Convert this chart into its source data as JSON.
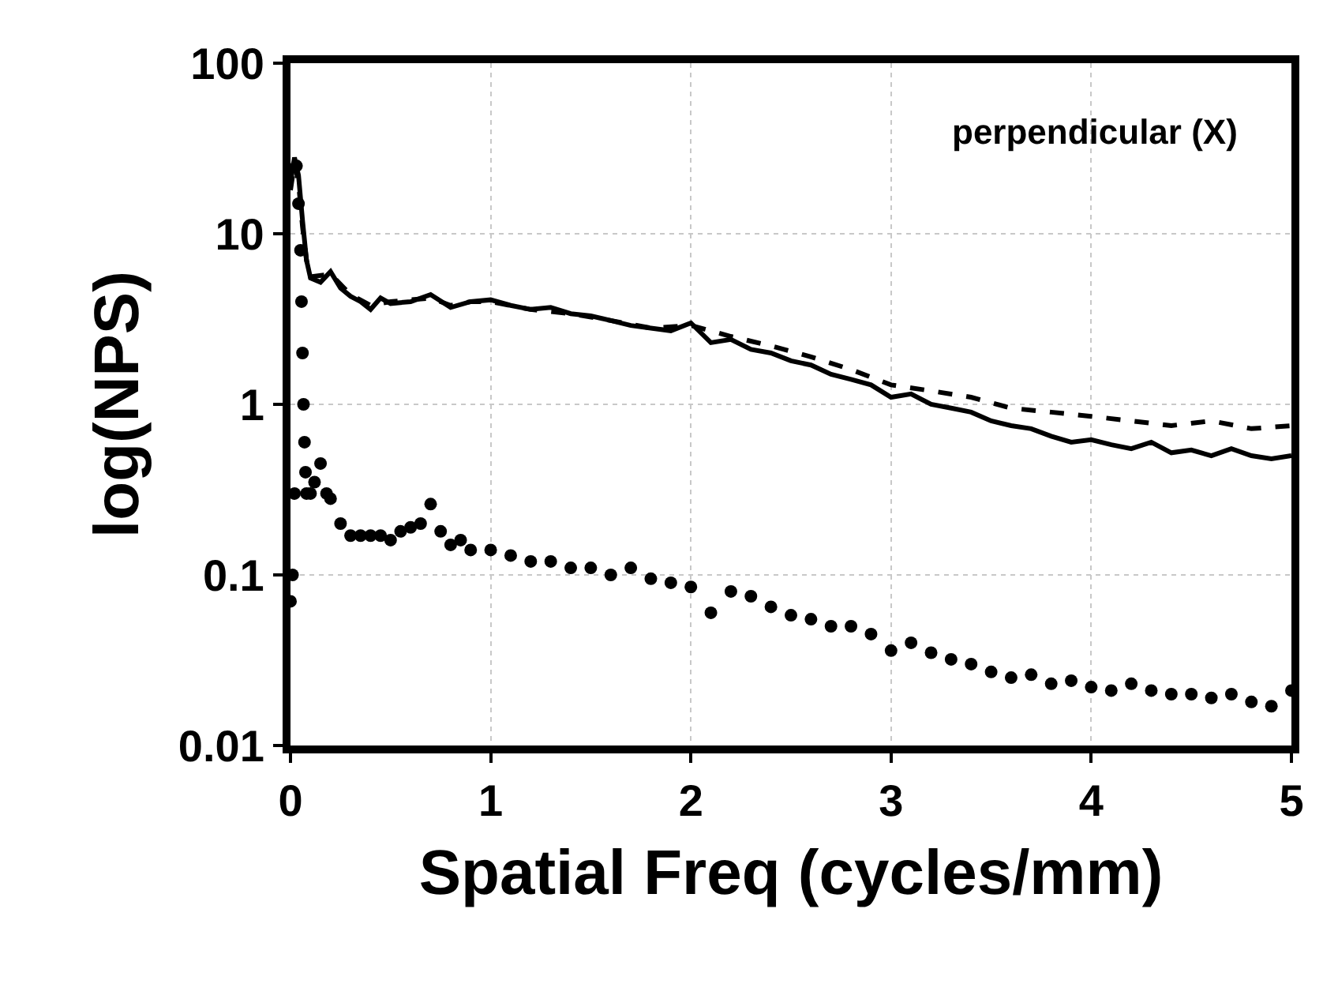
{
  "chart_data": {
    "type": "line",
    "xlabel": "Spatial Freq (cycles/mm)",
    "ylabel": "log(NPS)",
    "annotations": [
      "perpendicular (X)"
    ],
    "log": "y",
    "grid": true,
    "xlim": [
      0,
      5
    ],
    "xticks": [
      0,
      1,
      2,
      3,
      4,
      5
    ],
    "ylim": [
      0.01,
      100
    ],
    "yticks": [
      0.01,
      0.1,
      1,
      10,
      100
    ],
    "series": [
      {
        "color": "#000000",
        "line_style": "solid",
        "marker": "none",
        "x": [
          0.0,
          0.02,
          0.04,
          0.06,
          0.08,
          0.1,
          0.15,
          0.2,
          0.25,
          0.3,
          0.35,
          0.4,
          0.45,
          0.5,
          0.6,
          0.7,
          0.8,
          0.9,
          1.0,
          1.1,
          1.2,
          1.3,
          1.4,
          1.5,
          1.6,
          1.7,
          1.8,
          1.9,
          2.0,
          2.1,
          2.2,
          2.3,
          2.4,
          2.5,
          2.6,
          2.7,
          2.8,
          2.9,
          3.0,
          3.1,
          3.2,
          3.3,
          3.4,
          3.5,
          3.6,
          3.7,
          3.8,
          3.9,
          4.0,
          4.1,
          4.2,
          4.3,
          4.4,
          4.5,
          4.6,
          4.7,
          4.8,
          4.9,
          5.0
        ],
        "values": [
          20,
          28,
          22,
          12,
          7,
          5.5,
          5.2,
          6,
          4.8,
          4.3,
          4.0,
          3.6,
          4.2,
          3.9,
          4.0,
          4.4,
          3.7,
          4.0,
          4.1,
          3.8,
          3.6,
          3.7,
          3.4,
          3.3,
          3.1,
          2.9,
          2.8,
          2.7,
          3.0,
          2.3,
          2.4,
          2.1,
          2.0,
          1.8,
          1.7,
          1.5,
          1.4,
          1.3,
          1.1,
          1.15,
          1.0,
          0.95,
          0.9,
          0.8,
          0.75,
          0.72,
          0.65,
          0.6,
          0.62,
          0.58,
          0.55,
          0.6,
          0.52,
          0.54,
          0.5,
          0.55,
          0.5,
          0.48,
          0.5
        ]
      },
      {
        "color": "#000000",
        "line_style": "dashed",
        "marker": "none",
        "x": [
          0.0,
          0.02,
          0.04,
          0.06,
          0.08,
          0.1,
          0.2,
          0.3,
          0.4,
          0.5,
          0.6,
          0.7,
          0.8,
          0.9,
          1.0,
          1.2,
          1.4,
          1.6,
          1.8,
          2.0,
          2.2,
          2.4,
          2.6,
          2.8,
          3.0,
          3.2,
          3.4,
          3.6,
          3.8,
          4.0,
          4.2,
          4.4,
          4.6,
          4.8,
          5.0
        ],
        "values": [
          18,
          26,
          20,
          11,
          7,
          5.6,
          5.8,
          4.4,
          3.8,
          4.0,
          4.1,
          4.2,
          3.8,
          4.0,
          4.0,
          3.6,
          3.4,
          3.1,
          2.8,
          2.9,
          2.5,
          2.2,
          1.9,
          1.6,
          1.3,
          1.2,
          1.1,
          0.95,
          0.9,
          0.85,
          0.8,
          0.75,
          0.8,
          0.72,
          0.75
        ]
      },
      {
        "type": "scatter",
        "color": "#000000",
        "marker": "circle",
        "x": [
          0.0,
          0.01,
          0.02,
          0.03,
          0.04,
          0.05,
          0.055,
          0.06,
          0.065,
          0.07,
          0.075,
          0.08,
          0.1,
          0.12,
          0.15,
          0.18,
          0.2,
          0.25,
          0.3,
          0.35,
          0.4,
          0.45,
          0.5,
          0.55,
          0.6,
          0.65,
          0.7,
          0.75,
          0.8,
          0.85,
          0.9,
          1.0,
          1.1,
          1.2,
          1.3,
          1.4,
          1.5,
          1.6,
          1.7,
          1.8,
          1.9,
          2.0,
          2.1,
          2.2,
          2.3,
          2.4,
          2.5,
          2.6,
          2.7,
          2.8,
          2.9,
          3.0,
          3.1,
          3.2,
          3.3,
          3.4,
          3.5,
          3.6,
          3.7,
          3.8,
          3.9,
          4.0,
          4.1,
          4.2,
          4.3,
          4.4,
          4.5,
          4.6,
          4.7,
          4.8,
          4.9,
          5.0
        ],
        "values": [
          0.07,
          0.1,
          0.3,
          25,
          15,
          8,
          4,
          2,
          1,
          0.6,
          0.4,
          0.3,
          0.3,
          0.35,
          0.45,
          0.3,
          0.28,
          0.2,
          0.17,
          0.17,
          0.17,
          0.17,
          0.16,
          0.18,
          0.19,
          0.2,
          0.26,
          0.18,
          0.15,
          0.16,
          0.14,
          0.14,
          0.13,
          0.12,
          0.12,
          0.11,
          0.11,
          0.1,
          0.11,
          0.095,
          0.09,
          0.085,
          0.06,
          0.08,
          0.075,
          0.065,
          0.058,
          0.055,
          0.05,
          0.05,
          0.045,
          0.036,
          0.04,
          0.035,
          0.032,
          0.03,
          0.027,
          0.025,
          0.026,
          0.023,
          0.024,
          0.022,
          0.021,
          0.023,
          0.021,
          0.02,
          0.02,
          0.019,
          0.02,
          0.018,
          0.017,
          0.021
        ]
      }
    ]
  }
}
